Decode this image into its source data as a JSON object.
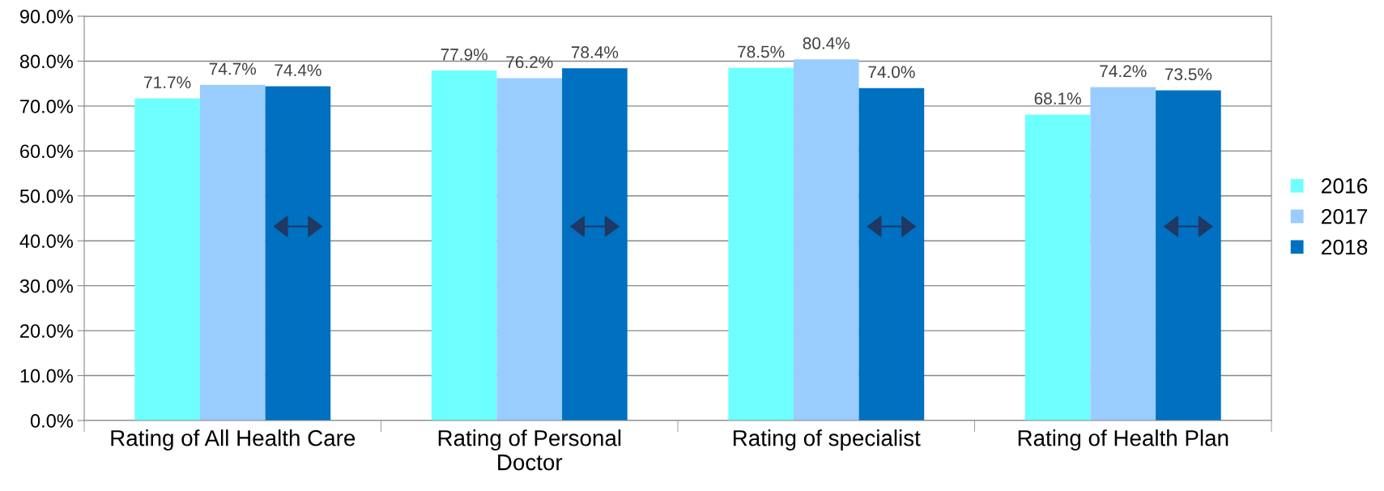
{
  "chart_data": {
    "type": "bar",
    "categories": [
      "Rating of All Health Care",
      "Rating of Personal\nDoctor",
      "Rating of specialist",
      "Rating of Health Plan"
    ],
    "series": [
      {
        "name": "2016",
        "color": "#6effff",
        "values": [
          71.7,
          77.9,
          78.5,
          68.1
        ],
        "value_labels": [
          "71.7%",
          "77.9%",
          "78.5%",
          "68.1%"
        ]
      },
      {
        "name": "2017",
        "color": "#99ccff",
        "values": [
          74.7,
          76.2,
          80.4,
          74.2
        ],
        "value_labels": [
          "74.7%",
          "76.2%",
          "80.4%",
          "74.2%"
        ]
      },
      {
        "name": "2018",
        "color": "#0070c0",
        "values": [
          74.4,
          78.4,
          74.0,
          73.5
        ],
        "value_labels": [
          "74.4%",
          "78.4%",
          "74.0%",
          "73.5%"
        ]
      }
    ],
    "ylim": [
      0,
      90
    ],
    "yticks": [
      {
        "value": 0,
        "label": "0.0%"
      },
      {
        "value": 10,
        "label": "10.0%"
      },
      {
        "value": 20,
        "label": "20.0%"
      },
      {
        "value": 30,
        "label": "30.0%"
      },
      {
        "value": 40,
        "label": "40.0%"
      },
      {
        "value": 50,
        "label": "50.0%"
      },
      {
        "value": 60,
        "label": "60.0%"
      },
      {
        "value": 70,
        "label": "70.0%"
      },
      {
        "value": 80,
        "label": "80.0%"
      },
      {
        "value": 90,
        "label": "90.0%"
      }
    ],
    "grid": "y",
    "legend": "right"
  }
}
